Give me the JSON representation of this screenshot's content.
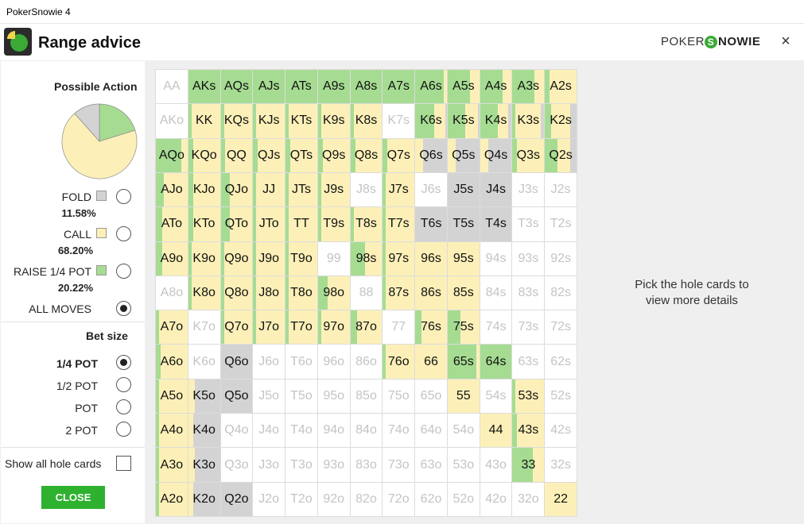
{
  "window": {
    "title": "PokerSnowie 4"
  },
  "header": {
    "title": "Range advice",
    "brand_a": "POKER",
    "brand_s": "S",
    "brand_b": "NOWIE",
    "close_glyph": "×"
  },
  "sidebar": {
    "possible_action_title": "Possible Action",
    "pie": {
      "fold_pct": 11.58,
      "call_pct": 68.2,
      "raise_pct": 20.22
    },
    "actions": [
      {
        "label": "FOLD",
        "pct": "11.58%",
        "color": "#d3d3d3"
      },
      {
        "label": "CALL",
        "pct": "68.20%",
        "color": "#fcf0b8"
      },
      {
        "label": "RAISE 1/4 POT",
        "pct": "20.22%",
        "color": "#a6dc92"
      }
    ],
    "all_moves_label": "ALL MOVES",
    "bet_size_title": "Bet size",
    "bet_sizes": [
      "1/4 POT",
      "1/2 POT",
      "POT",
      "2 POT"
    ],
    "show_all_label": "Show all hole cards",
    "close_label": "CLOSE"
  },
  "colors": {
    "fold": "#d3d3d3",
    "call": "#fcf0b8",
    "raise": "#a6dc92",
    "accent": "#2eb12e"
  },
  "hint": {
    "line1": "Pick the hole cards to",
    "line2": "view more details"
  },
  "grid": {
    "rows": [
      [
        "AA",
        "AKs",
        "AQs",
        "AJs",
        "ATs",
        "A9s",
        "A8s",
        "A7s",
        "A6s",
        "A5s",
        "A4s",
        "A3s",
        "A2s"
      ],
      [
        "AKo",
        "KK",
        "KQs",
        "KJs",
        "KTs",
        "K9s",
        "K8s",
        "K7s",
        "K6s",
        "K5s",
        "K4s",
        "K3s",
        "K2s"
      ],
      [
        "AQo",
        "KQo",
        "QQ",
        "QJs",
        "QTs",
        "Q9s",
        "Q8s",
        "Q7s",
        "Q6s",
        "Q5s",
        "Q4s",
        "Q3s",
        "Q2s"
      ],
      [
        "AJo",
        "KJo",
        "QJo",
        "JJ",
        "JTs",
        "J9s",
        "J8s",
        "J7s",
        "J6s",
        "J5s",
        "J4s",
        "J3s",
        "J2s"
      ],
      [
        "ATo",
        "KTo",
        "QTo",
        "JTo",
        "TT",
        "T9s",
        "T8s",
        "T7s",
        "T6s",
        "T5s",
        "T4s",
        "T3s",
        "T2s"
      ],
      [
        "A9o",
        "K9o",
        "Q9o",
        "J9o",
        "T9o",
        "99",
        "98s",
        "97s",
        "96s",
        "95s",
        "94s",
        "93s",
        "92s"
      ],
      [
        "A8o",
        "K8o",
        "Q8o",
        "J8o",
        "T8o",
        "98o",
        "88",
        "87s",
        "86s",
        "85s",
        "84s",
        "83s",
        "82s"
      ],
      [
        "A7o",
        "K7o",
        "Q7o",
        "J7o",
        "T7o",
        "97o",
        "87o",
        "77",
        "76s",
        "75s",
        "74s",
        "73s",
        "72s"
      ],
      [
        "A6o",
        "K6o",
        "Q6o",
        "J6o",
        "T6o",
        "96o",
        "86o",
        "76o",
        "66",
        "65s",
        "64s",
        "63s",
        "62s"
      ],
      [
        "A5o",
        "K5o",
        "Q5o",
        "J5o",
        "T5o",
        "95o",
        "85o",
        "75o",
        "65o",
        "55",
        "54s",
        "53s",
        "52s"
      ],
      [
        "A4o",
        "K4o",
        "Q4o",
        "J4o",
        "T4o",
        "94o",
        "84o",
        "74o",
        "64o",
        "54o",
        "44",
        "43s",
        "42s"
      ],
      [
        "A3o",
        "K3o",
        "Q3o",
        "J3o",
        "T3o",
        "93o",
        "83o",
        "73o",
        "63o",
        "53o",
        "43o",
        "33",
        "32s"
      ],
      [
        "A2o",
        "K2o",
        "Q2o",
        "J2o",
        "T2o",
        "92o",
        "82o",
        "72o",
        "62o",
        "52o",
        "42o",
        "32o",
        "22"
      ]
    ],
    "mix": [
      [
        [
          0,
          0,
          0
        ],
        [
          0,
          0,
          1
        ],
        [
          0,
          0,
          1
        ],
        [
          0,
          0,
          1
        ],
        [
          0,
          0,
          1
        ],
        [
          0,
          0,
          1
        ],
        [
          0,
          0,
          1
        ],
        [
          0,
          0,
          1
        ],
        [
          0,
          0.1,
          0.9
        ],
        [
          0,
          0.3,
          0.7
        ],
        [
          0,
          0.3,
          0.7
        ],
        [
          0,
          0.3,
          0.7
        ],
        [
          0,
          0.85,
          0.15
        ]
      ],
      [
        [
          0,
          0,
          0
        ],
        [
          0,
          0.9,
          0.1
        ],
        [
          0,
          0.9,
          0.1
        ],
        [
          0,
          0.9,
          0.1
        ],
        [
          0,
          0.9,
          0.1
        ],
        [
          0,
          0.9,
          0.1
        ],
        [
          0,
          0.9,
          0.1
        ],
        [
          0,
          0,
          0
        ],
        [
          0.05,
          0.35,
          0.6
        ],
        [
          0.05,
          0.4,
          0.55
        ],
        [
          0.1,
          0.35,
          0.55
        ],
        [
          0.1,
          0.8,
          0.1
        ],
        [
          0.2,
          0.6,
          0.2
        ]
      ],
      [
        [
          0,
          0.2,
          0.8
        ],
        [
          0,
          0.85,
          0.15
        ],
        [
          0,
          0.85,
          0.15
        ],
        [
          0,
          0.85,
          0.15
        ],
        [
          0,
          0.85,
          0.15
        ],
        [
          0,
          0.85,
          0.15
        ],
        [
          0,
          0.85,
          0.15
        ],
        [
          0,
          0.85,
          0.15
        ],
        [
          0.75,
          0.25,
          0
        ],
        [
          0.75,
          0.25,
          0
        ],
        [
          0.75,
          0.25,
          0
        ],
        [
          0,
          0.85,
          0.15
        ],
        [
          0.2,
          0.4,
          0.4
        ]
      ],
      [
        [
          0,
          0.75,
          0.25
        ],
        [
          0,
          0.85,
          0.15
        ],
        [
          0,
          0.7,
          0.3
        ],
        [
          0,
          0.9,
          0.1
        ],
        [
          0,
          0.9,
          0.1
        ],
        [
          0,
          0.9,
          0.1
        ],
        [
          0,
          0,
          0
        ],
        [
          0,
          0.9,
          0.1
        ],
        [
          0,
          0,
          0
        ],
        [
          1,
          0,
          0
        ],
        [
          1,
          0,
          0
        ],
        [
          0,
          0,
          0
        ],
        [
          0,
          0,
          0
        ]
      ],
      [
        [
          0,
          0.8,
          0.2
        ],
        [
          0,
          0.85,
          0.15
        ],
        [
          0,
          0.7,
          0.3
        ],
        [
          0,
          0.9,
          0.1
        ],
        [
          0,
          0.9,
          0.1
        ],
        [
          0,
          0.9,
          0.1
        ],
        [
          0,
          0.9,
          0.1
        ],
        [
          0,
          0.9,
          0.1
        ],
        [
          1,
          0,
          0
        ],
        [
          1,
          0,
          0
        ],
        [
          1,
          0,
          0
        ],
        [
          0,
          0,
          0
        ],
        [
          0,
          0,
          0
        ]
      ],
      [
        [
          0,
          0.8,
          0.2
        ],
        [
          0,
          0.9,
          0.1
        ],
        [
          0,
          0.9,
          0.1
        ],
        [
          0,
          0.9,
          0.1
        ],
        [
          0,
          0.9,
          0.1
        ],
        [
          0,
          0,
          0
        ],
        [
          0,
          0.55,
          0.45
        ],
        [
          0,
          0.9,
          0.1
        ],
        [
          0,
          1,
          0
        ],
        [
          0,
          1,
          0
        ],
        [
          0,
          0,
          0
        ],
        [
          0,
          0,
          0
        ],
        [
          0,
          0,
          0
        ]
      ],
      [
        [
          0,
          0,
          0
        ],
        [
          0,
          0.9,
          0.1
        ],
        [
          0,
          0.9,
          0.1
        ],
        [
          0,
          0.9,
          0.1
        ],
        [
          0,
          0.9,
          0.1
        ],
        [
          0,
          0.7,
          0.3
        ],
        [
          0,
          0,
          0
        ],
        [
          0,
          0.9,
          0.1
        ],
        [
          0,
          1,
          0
        ],
        [
          0,
          1,
          0
        ],
        [
          0,
          0,
          0
        ],
        [
          0,
          0,
          0
        ],
        [
          0,
          0,
          0
        ]
      ],
      [
        [
          0,
          0.9,
          0.1
        ],
        [
          0,
          0,
          0
        ],
        [
          0,
          0.9,
          0.1
        ],
        [
          0,
          0.9,
          0.1
        ],
        [
          0,
          0.9,
          0.1
        ],
        [
          0,
          0.9,
          0.1
        ],
        [
          0,
          0.8,
          0.2
        ],
        [
          0,
          0,
          0
        ],
        [
          0,
          0.8,
          0.2
        ],
        [
          0,
          0.6,
          0.4
        ],
        [
          0,
          0,
          0
        ],
        [
          0,
          0,
          0
        ],
        [
          0,
          0,
          0
        ]
      ],
      [
        [
          0,
          0.85,
          0.15
        ],
        [
          0,
          0,
          0
        ],
        [
          1,
          0,
          0
        ],
        [
          0,
          0,
          0
        ],
        [
          0,
          0,
          0
        ],
        [
          0,
          0,
          0
        ],
        [
          0,
          0,
          0
        ],
        [
          0,
          0.9,
          0.1
        ],
        [
          0,
          1,
          0
        ],
        [
          0,
          0.1,
          0.9
        ],
        [
          0,
          0,
          1
        ],
        [
          0,
          0,
          0
        ],
        [
          0,
          0,
          0
        ]
      ],
      [
        [
          0,
          0.9,
          0.1
        ],
        [
          0.8,
          0.2,
          0
        ],
        [
          1,
          0,
          0
        ],
        [
          0,
          0,
          0
        ],
        [
          0,
          0,
          0
        ],
        [
          0,
          0,
          0
        ],
        [
          0,
          0,
          0
        ],
        [
          0,
          0,
          0
        ],
        [
          0,
          0,
          0
        ],
        [
          0,
          1,
          0
        ],
        [
          0,
          0,
          0
        ],
        [
          0,
          0.9,
          0.1
        ],
        [
          0,
          0,
          0
        ]
      ],
      [
        [
          0,
          0.9,
          0.1
        ],
        [
          0.85,
          0.15,
          0
        ],
        [
          0,
          0,
          0
        ],
        [
          0,
          0,
          0
        ],
        [
          0,
          0,
          0
        ],
        [
          0,
          0,
          0
        ],
        [
          0,
          0,
          0
        ],
        [
          0,
          0,
          0
        ],
        [
          0,
          0,
          0
        ],
        [
          0,
          0,
          0
        ],
        [
          0,
          1,
          0
        ],
        [
          0,
          0.85,
          0.15
        ],
        [
          0,
          0,
          0
        ]
      ],
      [
        [
          0,
          0.9,
          0.1
        ],
        [
          0.8,
          0.2,
          0
        ],
        [
          0,
          0,
          0
        ],
        [
          0,
          0,
          0
        ],
        [
          0,
          0,
          0
        ],
        [
          0,
          0,
          0
        ],
        [
          0,
          0,
          0
        ],
        [
          0,
          0,
          0
        ],
        [
          0,
          0,
          0
        ],
        [
          0,
          0,
          0
        ],
        [
          0,
          0,
          0
        ],
        [
          0,
          0.35,
          0.65
        ],
        [
          0,
          0,
          0
        ]
      ],
      [
        [
          0,
          0.9,
          0.1
        ],
        [
          0.85,
          0.15,
          0
        ],
        [
          1,
          0,
          0
        ],
        [
          0,
          0,
          0
        ],
        [
          0,
          0,
          0
        ],
        [
          0,
          0,
          0
        ],
        [
          0,
          0,
          0
        ],
        [
          0,
          0,
          0
        ],
        [
          0,
          0,
          0
        ],
        [
          0,
          0,
          0
        ],
        [
          0,
          0,
          0
        ],
        [
          0,
          0,
          0
        ],
        [
          0,
          1,
          0
        ]
      ]
    ]
  }
}
